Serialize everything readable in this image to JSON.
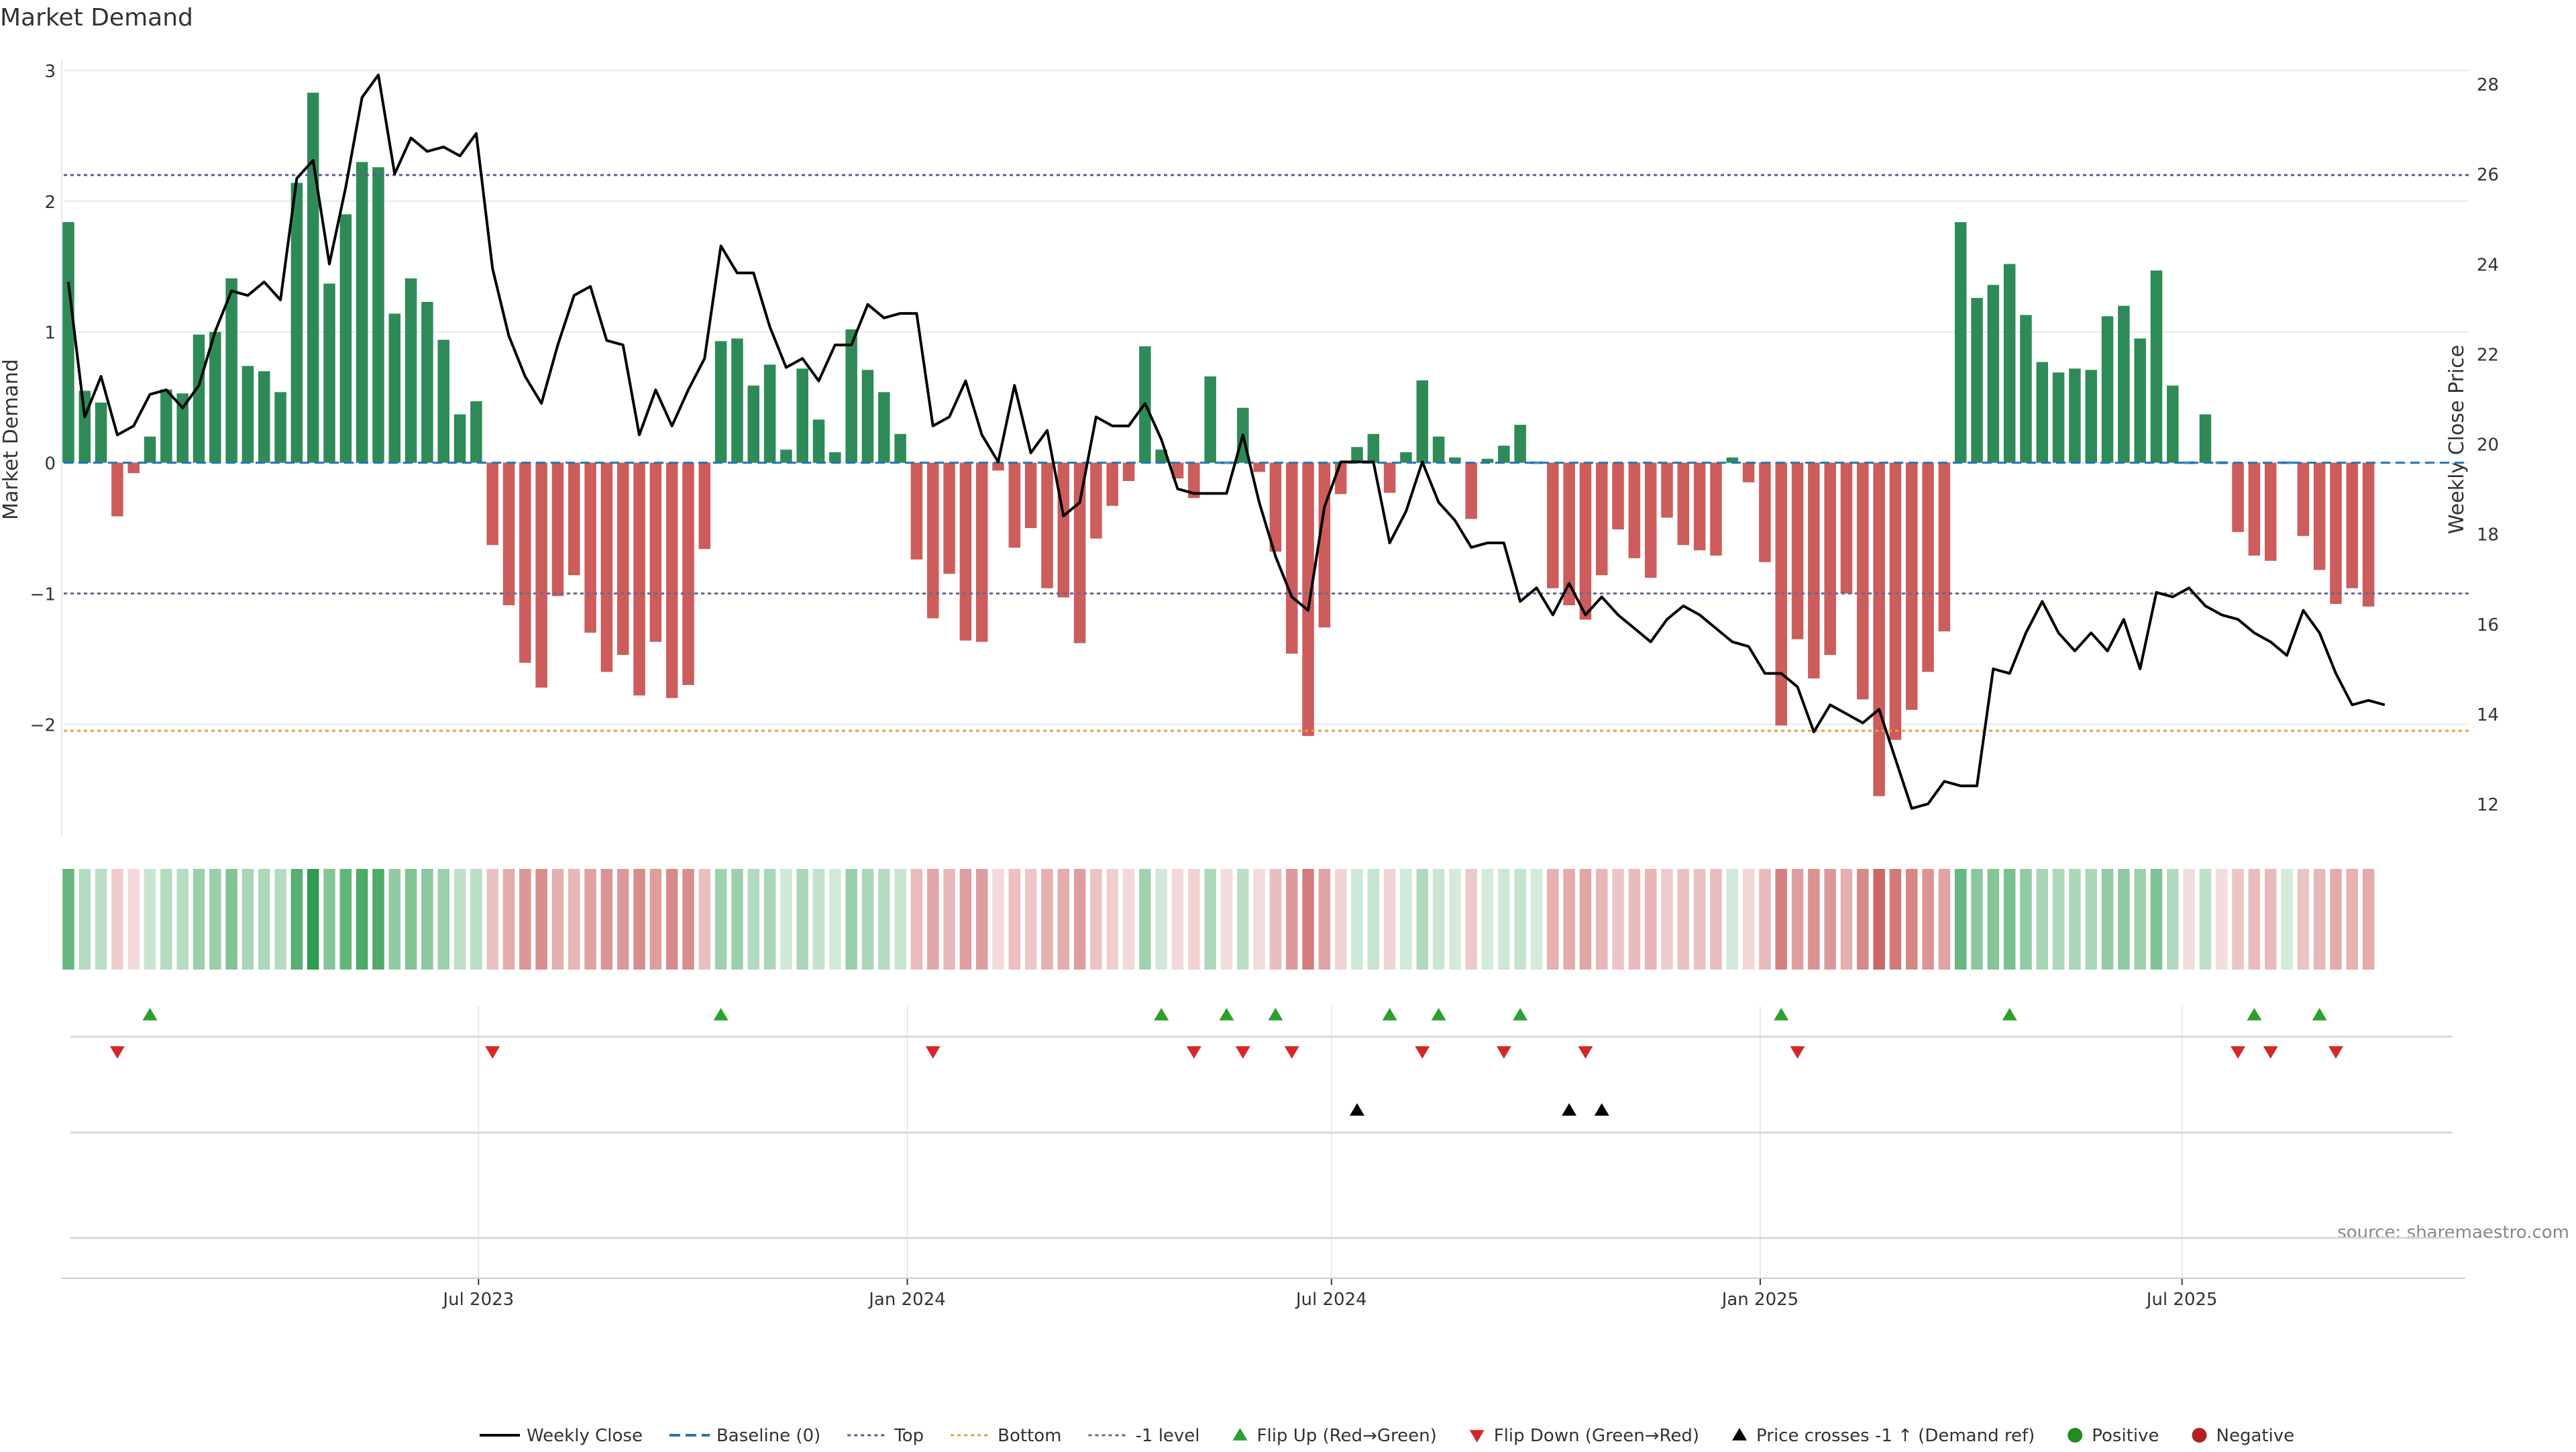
{
  "page_title": "Market Demand",
  "source_note": "source: sharemaestro.com",
  "colors": {
    "positive_bar": "#2e8b57",
    "negative_bar": "#cd5c5c",
    "price_line": "#000000",
    "baseline": "#1f77b4",
    "top_line": "#5a5a9a",
    "bottom_line": "#e8a03c",
    "minus1_line": "#6a6a8a",
    "flip_up": "#2ca02c",
    "flip_down": "#d62728",
    "cross": "#000000",
    "heat_positive": "#2e9b4f",
    "heat_negative": "#c85a5a",
    "grid": "#e8e8e8",
    "axis": "#cccccc",
    "text": "#333333",
    "source_text": "#888888"
  },
  "chart_data": {
    "type": "bar",
    "title": "Market Demand",
    "ylabel": "Market Demand",
    "y2label": "Weekly Close Price",
    "ylim": [
      -2.85,
      3.0
    ],
    "y2lim": [
      11.3,
      28.3
    ],
    "yticks": [
      -2,
      -1,
      0,
      1,
      2,
      3
    ],
    "ytick_labels": [
      "−2",
      "−1",
      "0",
      "1",
      "2",
      "3"
    ],
    "y2ticks": [
      12,
      14,
      16,
      18,
      20,
      22,
      24,
      26,
      28
    ],
    "y2tick_labels": [
      "12",
      "14",
      "16",
      "18",
      "20",
      "22",
      "24",
      "26",
      "28"
    ],
    "xlim": [
      "2023-01-04",
      "2025-11-01"
    ],
    "xticks": [
      "2023-07-01",
      "2024-01-01",
      "2024-07-01",
      "2025-01-01",
      "2025-07-01"
    ],
    "xtick_labels": [
      "Jul 2023",
      "Jan 2024",
      "Jul 2024",
      "Jan 2025",
      "Jul 2025"
    ],
    "first_week": "2023-01-06",
    "week_days": 7,
    "demand": [
      1.84,
      0.55,
      0.46,
      -0.41,
      -0.08,
      0.2,
      0.56,
      0.53,
      0.98,
      1.0,
      1.41,
      0.74,
      0.7,
      0.54,
      2.14,
      2.83,
      1.37,
      1.9,
      2.3,
      2.26,
      1.14,
      1.41,
      1.23,
      0.94,
      0.37,
      0.47,
      -0.63,
      -1.09,
      -1.53,
      -1.72,
      -1.02,
      -0.86,
      -1.3,
      -1.6,
      -1.47,
      -1.78,
      -1.37,
      -1.8,
      -1.7,
      -0.66,
      0.93,
      0.95,
      0.59,
      0.75,
      0.1,
      0.72,
      0.33,
      0.08,
      1.02,
      0.71,
      0.54,
      0.22,
      -0.74,
      -1.19,
      -0.85,
      -1.36,
      -1.37,
      -0.06,
      -0.65,
      -0.5,
      -0.96,
      -1.03,
      -1.38,
      -0.58,
      -0.33,
      -0.14,
      0.89,
      0.1,
      -0.12,
      -0.27,
      0.66,
      -0.02,
      0.42,
      -0.07,
      -0.68,
      -1.46,
      -2.09,
      -1.26,
      -0.24,
      0.12,
      0.22,
      -0.23,
      0.08,
      0.63,
      0.2,
      0.04,
      -0.43,
      0.03,
      0.13,
      0.29,
      0.02,
      -0.96,
      -1.09,
      -1.2,
      -0.86,
      -0.51,
      -0.73,
      -0.88,
      -0.42,
      -0.63,
      -0.67,
      -0.71,
      0.04,
      -0.15,
      -0.76,
      -2.01,
      -1.35,
      -1.65,
      -1.47,
      -1.0,
      -1.81,
      -2.55,
      -2.12,
      -1.89,
      -1.6,
      -1.29,
      1.84,
      1.26,
      1.36,
      1.52,
      1.13,
      0.77,
      0.69,
      0.72,
      0.71,
      1.12,
      1.2,
      0.95,
      1.47,
      0.59,
      -0.02,
      0.37,
      -0.01,
      -0.53,
      -0.71,
      -0.75,
      0.02,
      -0.56,
      -0.82,
      -1.08,
      -0.96,
      -1.1
    ],
    "price": [
      23.6,
      20.6,
      21.5,
      20.2,
      20.4,
      21.1,
      21.2,
      20.8,
      21.3,
      22.5,
      23.4,
      23.3,
      23.6,
      23.2,
      25.9,
      26.3,
      24.0,
      25.7,
      27.7,
      28.2,
      26.0,
      26.8,
      26.5,
      26.6,
      26.4,
      26.9,
      23.9,
      22.4,
      21.5,
      20.9,
      22.2,
      23.3,
      23.5,
      22.3,
      22.2,
      20.2,
      21.2,
      20.4,
      21.2,
      21.9,
      24.4,
      23.8,
      23.8,
      22.6,
      21.7,
      21.9,
      21.4,
      22.2,
      22.2,
      23.1,
      22.8,
      22.9,
      22.9,
      20.4,
      20.6,
      21.4,
      20.2,
      19.6,
      21.3,
      19.8,
      20.3,
      18.4,
      18.7,
      20.6,
      20.4,
      20.4,
      20.9,
      20.1,
      19.0,
      18.9,
      18.9,
      18.9,
      20.2,
      18.7,
      17.5,
      16.6,
      16.3,
      18.6,
      19.6,
      19.6,
      19.6,
      17.8,
      18.5,
      19.6,
      18.7,
      18.3,
      17.7,
      17.8,
      17.8,
      16.5,
      16.8,
      16.2,
      16.9,
      16.2,
      16.6,
      16.2,
      15.9,
      15.6,
      16.1,
      16.4,
      16.2,
      15.9,
      15.6,
      15.5,
      14.9,
      14.9,
      14.6,
      13.6,
      14.2,
      14.0,
      13.8,
      14.1,
      13.0,
      11.9,
      12.0,
      12.5,
      12.4,
      12.4,
      15.0,
      14.9,
      15.8,
      16.5,
      15.8,
      15.4,
      15.8,
      15.4,
      16.1,
      15.0,
      16.7,
      16.6,
      16.8,
      16.4,
      16.2,
      16.1,
      15.8,
      15.6,
      15.3,
      16.3,
      15.8,
      14.9,
      14.2,
      14.3,
      14.2
    ],
    "series": [
      {
        "name": "Weekly Close",
        "kind": "line"
      },
      {
        "name": "Baseline (0)",
        "kind": "dashed-line",
        "value": 0
      },
      {
        "name": "Top",
        "kind": "dotted-line",
        "value": 2.2
      },
      {
        "name": "Bottom",
        "kind": "dotted-line",
        "value": -2.05
      },
      {
        "name": "-1 level",
        "kind": "dotted-line",
        "value": -1
      },
      {
        "name": "Flip Up (Red→Green)",
        "kind": "marker-up"
      },
      {
        "name": "Flip Down (Green→Red)",
        "kind": "marker-down"
      },
      {
        "name": "Price crosses -1 ↑ (Demand ref)",
        "kind": "marker-up-black"
      },
      {
        "name": "Positive",
        "kind": "dot-green"
      },
      {
        "name": "Negative",
        "kind": "dot-red"
      }
    ],
    "flip_up_weeks": [
      5,
      40,
      67,
      71,
      74,
      81,
      84,
      89,
      105,
      119,
      134,
      138
    ],
    "flip_down_weeks": [
      3,
      26,
      53,
      69,
      72,
      75,
      83,
      88,
      93,
      106,
      133,
      135,
      139
    ],
    "cross_weeks": [
      79,
      92,
      94
    ],
    "legend_position": "bottom"
  }
}
